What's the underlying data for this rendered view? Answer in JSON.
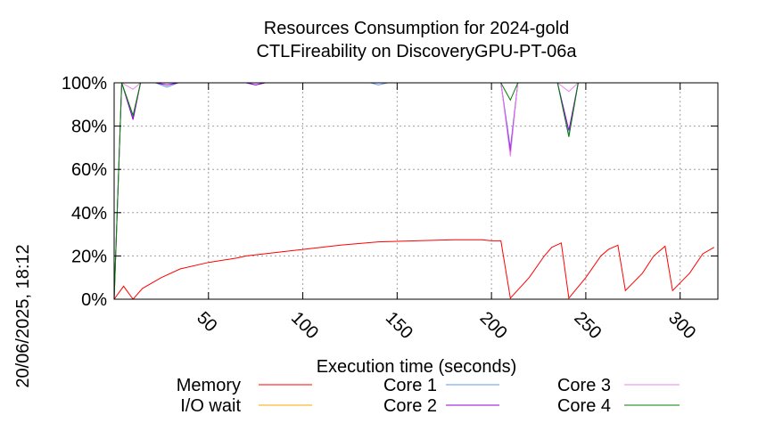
{
  "chart_data": {
    "type": "line",
    "title": "Resources Consumption for 2024-gold",
    "subtitle": "CTLFireability on DiscoveryGPU-PT-06a",
    "xlabel": "Execution time (seconds)",
    "ylabel": "",
    "side_label": "20/06/2025, 18:12",
    "xlim": [
      0,
      320
    ],
    "ylim": [
      0,
      100
    ],
    "x_ticks": [
      50,
      100,
      150,
      200,
      250,
      300
    ],
    "y_ticks": [
      0,
      20,
      40,
      60,
      80,
      100
    ],
    "y_tick_suffix": "%",
    "grid": true,
    "legend_position": "bottom",
    "series": [
      {
        "name": "Memory",
        "color": "#ff0000",
        "points": [
          [
            0,
            0
          ],
          [
            5,
            6
          ],
          [
            10,
            0
          ],
          [
            15,
            5
          ],
          [
            25,
            10
          ],
          [
            35,
            14
          ],
          [
            50,
            17
          ],
          [
            65,
            19
          ],
          [
            70,
            20
          ],
          [
            90,
            22
          ],
          [
            100,
            23
          ],
          [
            120,
            25
          ],
          [
            140,
            26.5
          ],
          [
            160,
            27
          ],
          [
            180,
            27.5
          ],
          [
            195,
            27.5
          ],
          [
            200,
            27
          ],
          [
            205,
            27
          ],
          [
            210,
            0.5
          ],
          [
            220,
            10
          ],
          [
            228,
            20
          ],
          [
            232,
            24
          ],
          [
            237,
            26
          ],
          [
            241,
            0.5
          ],
          [
            250,
            10
          ],
          [
            258,
            20
          ],
          [
            262,
            23
          ],
          [
            267,
            25
          ],
          [
            271,
            4
          ],
          [
            280,
            12
          ],
          [
            286,
            20
          ],
          [
            292,
            24.5
          ],
          [
            296,
            4
          ],
          [
            305,
            12
          ],
          [
            312,
            21
          ],
          [
            318,
            24
          ]
        ]
      },
      {
        "name": "I/O wait",
        "color": "#ffa500",
        "points": [
          [
            0,
            0
          ],
          [
            320,
            0
          ]
        ]
      },
      {
        "name": "Core 1",
        "color": "#6495ed",
        "points": [
          [
            0,
            0
          ],
          [
            4,
            100
          ],
          [
            10,
            84
          ],
          [
            14,
            100
          ],
          [
            22,
            100
          ],
          [
            28,
            98
          ],
          [
            34,
            100
          ],
          [
            70,
            100
          ],
          [
            75,
            99
          ],
          [
            80,
            100
          ],
          [
            136,
            100
          ],
          [
            140,
            99
          ],
          [
            145,
            100
          ],
          [
            205,
            100
          ],
          [
            210,
            70
          ],
          [
            214,
            100
          ],
          [
            235,
            100
          ],
          [
            241,
            76
          ],
          [
            246,
            100
          ],
          [
            320,
            100
          ]
        ]
      },
      {
        "name": "Core 2",
        "color": "#9400d3",
        "points": [
          [
            0,
            0
          ],
          [
            4,
            100
          ],
          [
            10,
            83
          ],
          [
            14,
            100
          ],
          [
            22,
            100
          ],
          [
            28,
            99
          ],
          [
            34,
            100
          ],
          [
            70,
            100
          ],
          [
            75,
            99
          ],
          [
            80,
            100
          ],
          [
            205,
            100
          ],
          [
            210,
            68
          ],
          [
            214,
            100
          ],
          [
            235,
            100
          ],
          [
            241,
            78
          ],
          [
            246,
            100
          ],
          [
            320,
            100
          ]
        ]
      },
      {
        "name": "Core 3",
        "color": "#ee82ee",
        "points": [
          [
            0,
            0
          ],
          [
            4,
            100
          ],
          [
            10,
            97
          ],
          [
            14,
            100
          ],
          [
            205,
            100
          ],
          [
            210,
            66
          ],
          [
            214,
            100
          ],
          [
            235,
            100
          ],
          [
            241,
            96
          ],
          [
            246,
            100
          ],
          [
            320,
            100
          ]
        ]
      },
      {
        "name": "Core 4",
        "color": "#008000",
        "points": [
          [
            0,
            0
          ],
          [
            4,
            100
          ],
          [
            10,
            85
          ],
          [
            14,
            100
          ],
          [
            205,
            100
          ],
          [
            210,
            92
          ],
          [
            214,
            100
          ],
          [
            235,
            100
          ],
          [
            241,
            75
          ],
          [
            246,
            100
          ],
          [
            320,
            100
          ]
        ]
      }
    ]
  }
}
